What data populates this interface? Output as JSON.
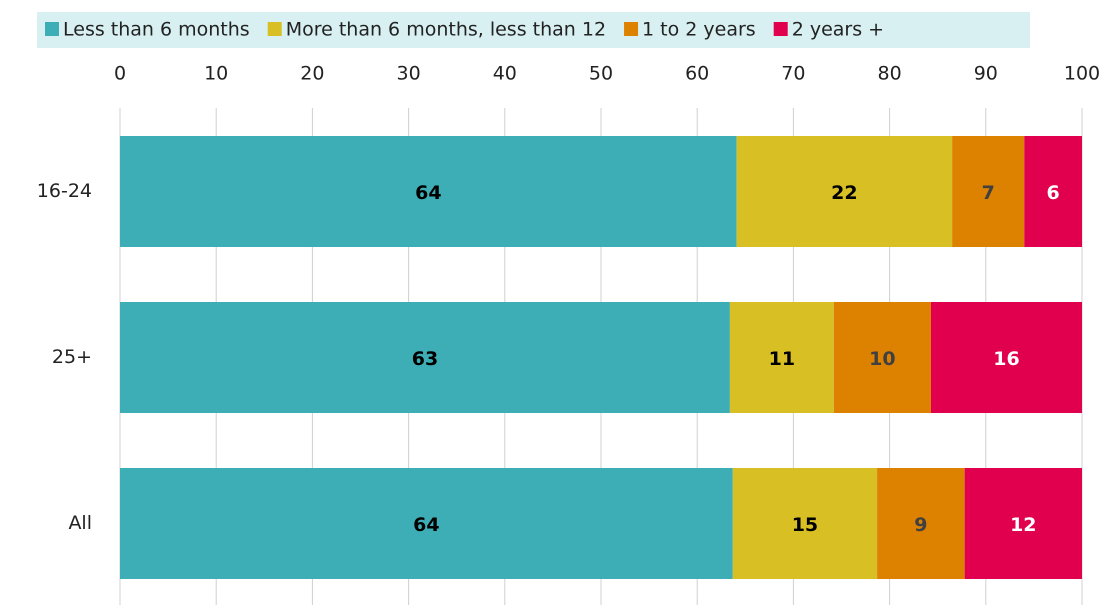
{
  "chart_data": {
    "type": "stacked-bar-horizontal",
    "categories": [
      "16-24",
      "25+",
      "All"
    ],
    "series": [
      {
        "name": "Less than 6 months",
        "color": "#3eaeb6",
        "label_color": "#000000",
        "values": [
          64.1,
          63.4,
          63.7
        ],
        "value_labels": [
          "64",
          "63",
          "64"
        ]
      },
      {
        "name": "More than 6 months, less than 12",
        "color": "#d8c024",
        "label_color": "#000000",
        "values": [
          22.4,
          10.8,
          15.0
        ],
        "value_labels": [
          "22",
          "11",
          "15"
        ]
      },
      {
        "name": "1 to 2 years",
        "color": "#dd8200",
        "label_color": "#404040",
        "values": [
          7.5,
          10.1,
          9.1
        ],
        "value_labels": [
          "7",
          "10",
          "9"
        ]
      },
      {
        "name": "2 years +",
        "color": "#e0004d",
        "label_color": "#ffffff",
        "values": [
          6.0,
          15.7,
          12.2
        ],
        "value_labels": [
          "6",
          "16",
          "12"
        ]
      }
    ],
    "xlim": [
      0,
      100
    ],
    "xticks": [
      0,
      10,
      20,
      30,
      40,
      50,
      60,
      70,
      80,
      90,
      100
    ],
    "grid": true,
    "legend": "top"
  }
}
